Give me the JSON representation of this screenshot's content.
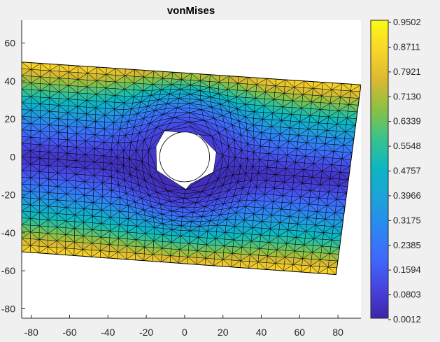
{
  "chart_data": {
    "type": "heatmap",
    "title": "vonMises",
    "xlabel": "",
    "ylabel": "",
    "xlim": [
      -85,
      92
    ],
    "ylim": [
      -85,
      72
    ],
    "xticks": [
      -80,
      -60,
      -40,
      -20,
      0,
      20,
      40,
      60,
      80
    ],
    "yticks": [
      60,
      40,
      20,
      0,
      -20,
      -40,
      -60,
      -80
    ],
    "xtick_labels": [
      "-80",
      "-60",
      "-40",
      "-20",
      "0",
      "20",
      "40",
      "60",
      "80"
    ],
    "ytick_labels": [
      "60",
      "40",
      "20",
      "0",
      "-20",
      "-40",
      "-60",
      "-80"
    ],
    "colormap": "parula",
    "colorbar": {
      "range": [
        0.0012,
        0.9502
      ],
      "ticks": [
        "0.9502",
        "0.8711",
        "0.7921",
        "0.7130",
        "0.6339",
        "0.5548",
        "0.4757",
        "0.3966",
        "0.3175",
        "0.2385",
        "0.1594",
        "0.0803",
        "0.0012"
      ]
    },
    "plate_corners": [
      {
        "x": -85,
        "y": 50
      },
      {
        "x": 92,
        "y": 38
      },
      {
        "x": 79,
        "y": -62
      },
      {
        "x": -85,
        "y": -50
      }
    ],
    "hole": {
      "cx": 0,
      "cy": 0,
      "r": 13
    },
    "grid": false,
    "legend": "colorbar-right"
  }
}
